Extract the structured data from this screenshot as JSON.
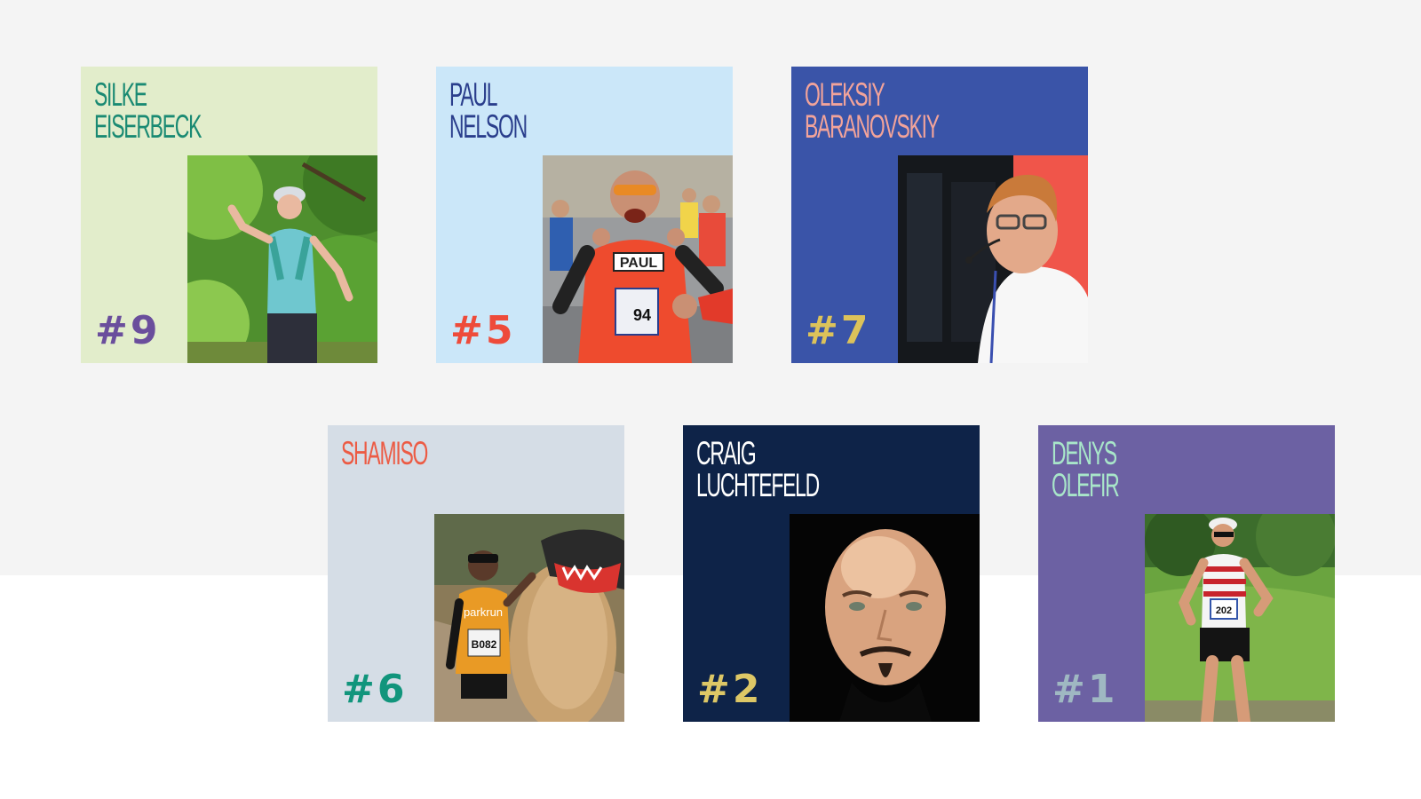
{
  "cards": [
    {
      "name": "SILKE\nEISERBECK",
      "rank": "#9",
      "colors": {
        "bg": "#e2edcb",
        "name": "#1a8a73",
        "rank": "#6a4e9c"
      },
      "photo": "trail-runner-woman-photo"
    },
    {
      "name": "PAUL\nNELSON",
      "rank": "#5",
      "colors": {
        "bg": "#cbe7f9",
        "name": "#2a3e8c",
        "rank": "#ee4b3a"
      },
      "photo": "marathon-runner-paul-photo",
      "shirt_label": "PAUL",
      "bib_number": "94"
    },
    {
      "name": "OLEKSIY\nBARANOVSKIY",
      "rank": "#7",
      "colors": {
        "bg": "#3a54a8",
        "name": "#f2a39a",
        "rank": "#dcc25a"
      },
      "photo": "speaker-with-headset-photo"
    },
    {
      "name": "SHAMISO",
      "rank": "#6",
      "colors": {
        "bg": "#d5dde6",
        "name": "#ec5b44",
        "rank": "#11957c"
      },
      "photo": "runner-with-lion-costume-photo",
      "shirt_label": "parkrun",
      "bib_number": "B082"
    },
    {
      "name": "CRAIG\nLUCHTEFELD",
      "rank": "#2",
      "colors": {
        "bg": "#0e2348",
        "name": "#ffffff",
        "rank": "#ddc766"
      },
      "photo": "bald-man-portrait-photo"
    },
    {
      "name": "DENYS\nOLEFIR",
      "rank": "#1",
      "colors": {
        "bg": "#6c61a3",
        "name": "#a8e6c9",
        "rank": "#9fb8c2"
      },
      "photo": "track-runner-man-photo",
      "bib_number": "202"
    }
  ]
}
